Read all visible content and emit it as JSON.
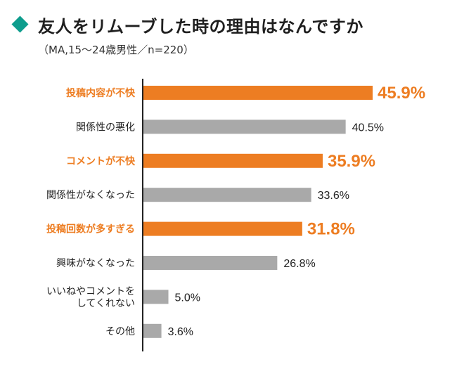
{
  "header": {
    "title": "友人をリムーブした時の理由はなんですか",
    "subtitle": "（MA,15〜24歳男性／n=220）"
  },
  "colors": {
    "accent": "#ed7d22",
    "gray": "#a9a9a9",
    "teal": "#0e9d8d",
    "text": "#222222"
  },
  "chart_data": {
    "type": "bar",
    "orientation": "horizontal",
    "categories": [
      "投稿内容が不快",
      "関係性の悪化",
      "コメントが不快",
      "関係性がなくなった",
      "投稿回数が多すぎる",
      "興味がなくなった",
      "いいねやコメントを\nしてくれない",
      "その他"
    ],
    "values": [
      45.9,
      40.5,
      35.9,
      33.6,
      31.8,
      26.8,
      5.0,
      3.6
    ],
    "value_labels": [
      "45.9%",
      "40.5%",
      "35.9%",
      "33.6%",
      "31.8%",
      "26.8%",
      "5.0%",
      "3.6%"
    ],
    "highlighted": [
      true,
      false,
      true,
      false,
      true,
      false,
      false,
      false
    ],
    "title": "友人をリムーブした時の理由はなんですか",
    "xlim": [
      0,
      50
    ],
    "grid": false,
    "legend": "none"
  }
}
